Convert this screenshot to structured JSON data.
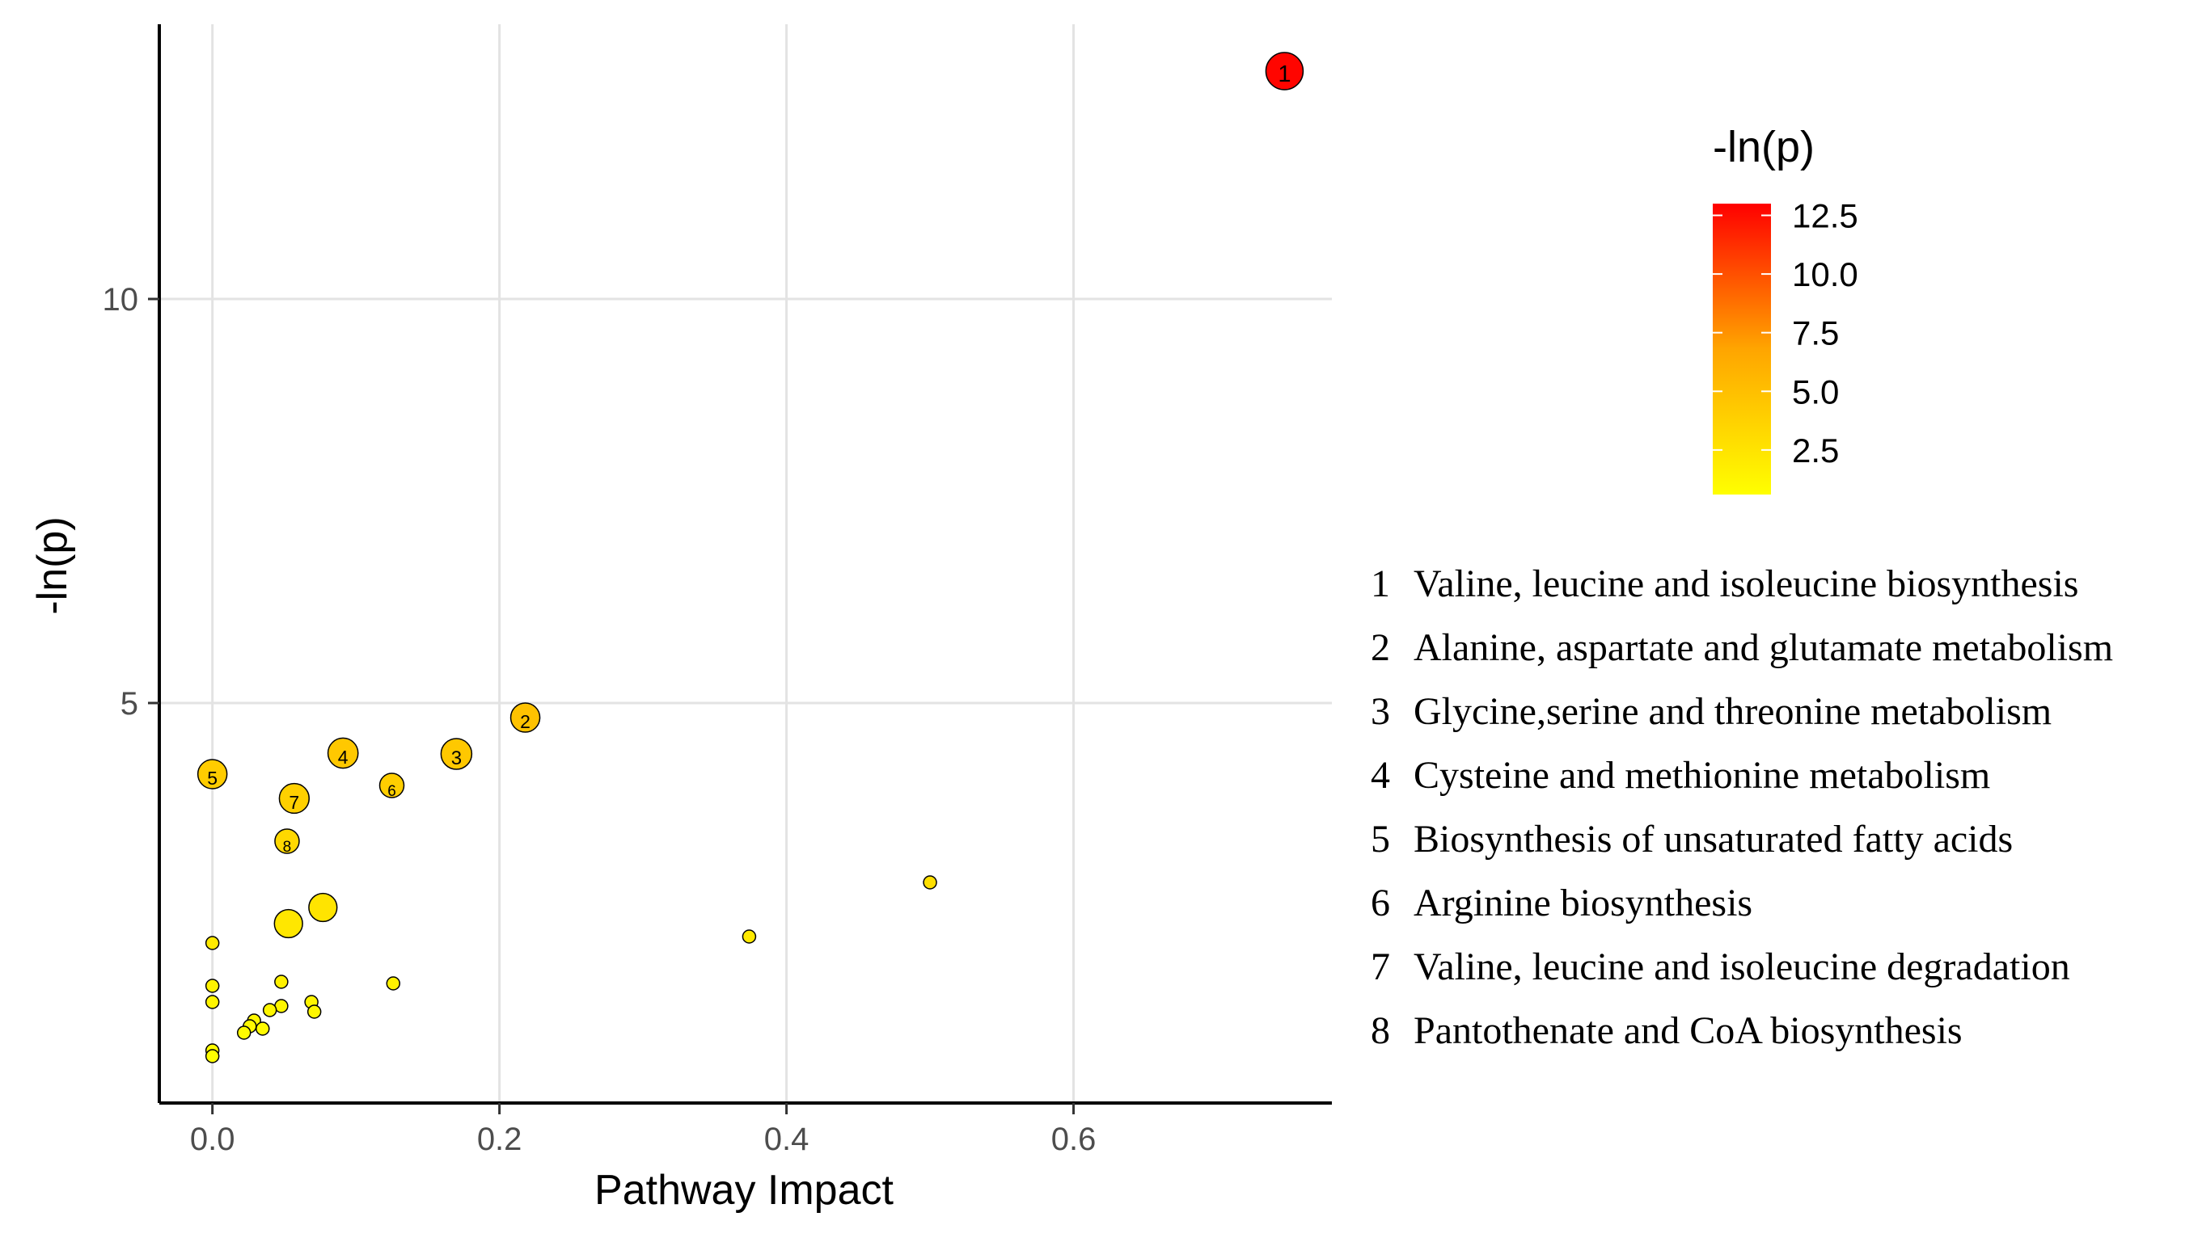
{
  "chart_data": {
    "type": "scatter",
    "xlabel": "Pathway Impact",
    "ylabel": "-ln(p)",
    "xlim": [
      -0.037,
      0.78
    ],
    "ylim": [
      0.05,
      13.4
    ],
    "x_ticks": [
      0.0,
      0.2,
      0.4,
      0.6
    ],
    "x_tick_labels": [
      "0.0",
      "0.2",
      "0.4",
      "0.6"
    ],
    "y_ticks": [
      5,
      10
    ],
    "y_tick_labels": [
      "5",
      "10"
    ],
    "grid": true,
    "color_scale": {
      "title": "-ln(p)",
      "min": 0.6,
      "max": 13.0,
      "low_color": "#FFFF00",
      "mid_color": "#FFA500",
      "high_color": "#FF0000",
      "ticks": [
        2.5,
        5.0,
        7.5,
        10.0,
        12.5
      ],
      "tick_labels": [
        "2.5",
        "5.0",
        "7.5",
        "10.0",
        "12.5"
      ]
    },
    "points": [
      {
        "x": 0.747,
        "y": 12.82,
        "label": "1"
      },
      {
        "x": 0.218,
        "y": 4.82,
        "label": "2"
      },
      {
        "x": 0.17,
        "y": 4.37,
        "label": "3"
      },
      {
        "x": 0.091,
        "y": 4.38,
        "label": "4"
      },
      {
        "x": 0.0,
        "y": 4.12,
        "label": "5"
      },
      {
        "x": 0.125,
        "y": 3.98,
        "label": "6"
      },
      {
        "x": 0.057,
        "y": 3.82,
        "label": "7"
      },
      {
        "x": 0.052,
        "y": 3.29,
        "label": "8"
      },
      {
        "x": 0.077,
        "y": 2.47,
        "label": ""
      },
      {
        "x": 0.053,
        "y": 2.27,
        "label": ""
      },
      {
        "x": 0.5,
        "y": 2.78,
        "label": ""
      },
      {
        "x": 0.374,
        "y": 2.11,
        "label": ""
      },
      {
        "x": 0.0,
        "y": 2.03,
        "label": ""
      },
      {
        "x": 0.0,
        "y": 1.5,
        "label": ""
      },
      {
        "x": 0.0,
        "y": 1.3,
        "label": ""
      },
      {
        "x": 0.0,
        "y": 0.7,
        "label": ""
      },
      {
        "x": 0.0,
        "y": 0.63,
        "label": ""
      },
      {
        "x": 0.126,
        "y": 1.53,
        "label": ""
      },
      {
        "x": 0.048,
        "y": 1.55,
        "label": ""
      },
      {
        "x": 0.048,
        "y": 1.25,
        "label": ""
      },
      {
        "x": 0.069,
        "y": 1.3,
        "label": ""
      },
      {
        "x": 0.071,
        "y": 1.18,
        "label": ""
      },
      {
        "x": 0.04,
        "y": 1.2,
        "label": ""
      },
      {
        "x": 0.029,
        "y": 1.07,
        "label": ""
      },
      {
        "x": 0.026,
        "y": 1.0,
        "label": ""
      },
      {
        "x": 0.022,
        "y": 0.92,
        "label": ""
      },
      {
        "x": 0.035,
        "y": 0.97,
        "label": ""
      }
    ],
    "point_sizes": [
      1.0,
      0.75,
      0.8,
      0.78,
      0.75,
      0.6,
      0.77,
      0.6,
      0.72,
      0.72,
      0.25,
      0.25,
      0.25,
      0.25,
      0.25,
      0.25,
      0.25,
      0.25,
      0.25,
      0.25,
      0.25,
      0.25,
      0.25,
      0.25,
      0.25,
      0.25,
      0.25
    ],
    "pathways": [
      {
        "number": "1",
        "name": "Valine, leucine and isoleucine biosynthesis"
      },
      {
        "number": "2",
        "name": "Alanine, aspartate and glutamate metabolism"
      },
      {
        "number": "3",
        "name": "Glycine,serine and threonine metabolism"
      },
      {
        "number": "4",
        "name": "Cysteine and methionine metabolism"
      },
      {
        "number": "5",
        "name": "Biosynthesis of unsaturated fatty acids"
      },
      {
        "number": "6",
        "name": "Arginine biosynthesis"
      },
      {
        "number": "7",
        "name": "Valine, leucine and isoleucine degradation"
      },
      {
        "number": "8",
        "name": "Pantothenate and CoA biosynthesis"
      }
    ]
  }
}
